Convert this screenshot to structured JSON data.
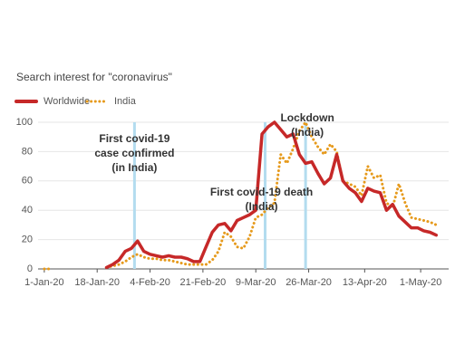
{
  "chart_data": {
    "type": "line",
    "title": "Search interest for \"coronavirus\"",
    "x": [
      "2020-01-01",
      "2020-01-03",
      "2020-01-05",
      "2020-01-07",
      "2020-01-09",
      "2020-01-11",
      "2020-01-13",
      "2020-01-15",
      "2020-01-17",
      "2020-01-19",
      "2020-01-21",
      "2020-01-23",
      "2020-01-25",
      "2020-01-27",
      "2020-01-29",
      "2020-01-31",
      "2020-02-02",
      "2020-02-04",
      "2020-02-06",
      "2020-02-08",
      "2020-02-10",
      "2020-02-12",
      "2020-02-14",
      "2020-02-16",
      "2020-02-18",
      "2020-02-20",
      "2020-02-22",
      "2020-02-24",
      "2020-02-26",
      "2020-02-28",
      "2020-03-01",
      "2020-03-03",
      "2020-03-05",
      "2020-03-07",
      "2020-03-09",
      "2020-03-11",
      "2020-03-13",
      "2020-03-15",
      "2020-03-17",
      "2020-03-19",
      "2020-03-21",
      "2020-03-23",
      "2020-03-25",
      "2020-03-27",
      "2020-03-29",
      "2020-03-31",
      "2020-04-02",
      "2020-04-04",
      "2020-04-06",
      "2020-04-08",
      "2020-04-10",
      "2020-04-12",
      "2020-04-14",
      "2020-04-16",
      "2020-04-18",
      "2020-04-20",
      "2020-04-22",
      "2020-04-24",
      "2020-04-26",
      "2020-04-28",
      "2020-04-30",
      "2020-05-02",
      "2020-05-04",
      "2020-05-06"
    ],
    "series": [
      {
        "name": "Worldwide",
        "color": "#c62828",
        "style": "solid",
        "values": [
          null,
          null,
          null,
          null,
          null,
          null,
          null,
          null,
          null,
          null,
          1,
          3,
          6,
          12,
          14,
          19,
          12,
          10,
          9,
          8,
          9,
          8,
          8,
          7,
          5,
          5,
          15,
          25,
          30,
          31,
          26,
          33,
          35,
          37,
          40,
          92,
          97,
          100,
          95,
          90,
          92,
          78,
          72,
          73,
          65,
          58,
          62,
          78,
          60,
          55,
          52,
          46,
          55,
          53,
          52,
          40,
          44,
          36,
          32,
          28,
          28,
          26,
          25,
          23
        ]
      },
      {
        "name": "India",
        "color": "#e69a1c",
        "style": "dotted",
        "values": [
          0,
          0,
          null,
          0,
          null,
          null,
          null,
          null,
          null,
          null,
          1,
          2,
          3,
          5,
          8,
          10,
          8,
          7,
          7,
          6,
          6,
          5,
          4,
          3,
          3,
          3,
          3,
          6,
          12,
          25,
          22,
          15,
          14,
          22,
          35,
          37,
          42,
          45,
          78,
          72,
          82,
          94,
          100,
          90,
          83,
          78,
          85,
          80,
          60,
          58,
          56,
          50,
          70,
          62,
          64,
          45,
          42,
          58,
          45,
          35,
          34,
          33,
          32,
          30
        ]
      }
    ],
    "xlim": [
      "2019-12-30",
      "2020-05-10"
    ],
    "xticks": [
      {
        "value": "2020-01-01",
        "label": "1-Jan-20"
      },
      {
        "value": "2020-01-18",
        "label": "18-Jan-20"
      },
      {
        "value": "2020-02-04",
        "label": "4-Feb-20"
      },
      {
        "value": "2020-02-21",
        "label": "21-Feb-20"
      },
      {
        "value": "2020-03-09",
        "label": "9-Mar-20"
      },
      {
        "value": "2020-03-26",
        "label": "26-Mar-20"
      },
      {
        "value": "2020-04-13",
        "label": "13-Apr-20"
      },
      {
        "value": "2020-05-01",
        "label": "1-May-20"
      }
    ],
    "ylim": [
      0,
      100
    ],
    "yticks": [
      0,
      20,
      40,
      60,
      80,
      100
    ],
    "grid": true,
    "legend": "top-left",
    "annotations": [
      {
        "x": "2020-01-30",
        "lines": [
          "First covid-19",
          "case confirmed",
          "(in India)"
        ]
      },
      {
        "x": "2020-03-12",
        "lines": [
          "First covid-19 death",
          "(India)"
        ]
      },
      {
        "x": "2020-03-25",
        "lines": [
          "Lockdown",
          "(India)"
        ]
      }
    ]
  }
}
